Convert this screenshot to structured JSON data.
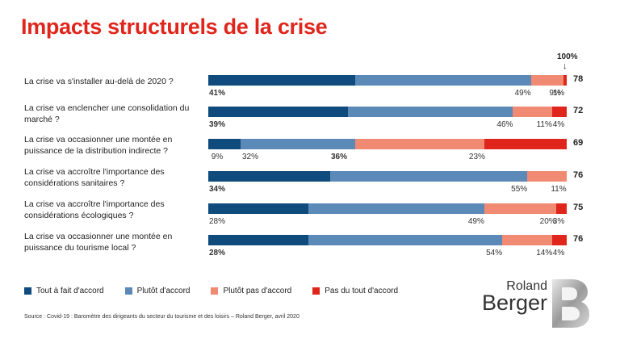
{
  "title": "Impacts structurels de la crise",
  "marker": {
    "label": "100%",
    "arrow": "↓"
  },
  "colors": {
    "tout_a_fait": "#0f4b7c",
    "plutot": "#5b8ab8",
    "plutot_pas": "#f08a72",
    "pas_du_tout": "#e0261c"
  },
  "chart_data": {
    "type": "bar",
    "orientation": "horizontal-stacked",
    "series_names": [
      "Tout à fait d'accord",
      "Plutôt d'accord",
      "Plutôt pas d'accord",
      "Pas du tout d'accord"
    ],
    "rows": [
      {
        "question": "La crise va s'installer au-delà de 2020 ?",
        "values": [
          41,
          49,
          9,
          1
        ],
        "labels": [
          "41%",
          "49%",
          "9%",
          "1%"
        ],
        "bold": [
          0
        ],
        "total": "78"
      },
      {
        "question": "La crise va enclencher une consolidation du marché ?",
        "values": [
          39,
          46,
          11,
          4
        ],
        "labels": [
          "39%",
          "46%",
          "11%",
          "4%"
        ],
        "bold": [
          0
        ],
        "total": "72"
      },
      {
        "question": "La crise va occasionner une montée en puissance de la distribution indirecte ?",
        "values": [
          9,
          32,
          36,
          23
        ],
        "labels": [
          "9%",
          "32%",
          "36%",
          "23%"
        ],
        "bold": [
          2
        ],
        "total": "69"
      },
      {
        "question": "La crise va accroître l'importance des considérations sanitaires ?",
        "values": [
          34,
          55,
          11,
          0
        ],
        "labels": [
          "34%",
          "55%",
          "11%",
          ""
        ],
        "bold": [
          0
        ],
        "total": "76"
      },
      {
        "question": "La crise va accroître l'importance des considérations écologiques ?",
        "values": [
          28,
          49,
          20,
          3
        ],
        "labels": [
          "28%",
          "49%",
          "20%",
          "3%"
        ],
        "bold": [],
        "total": "75"
      },
      {
        "question": "La crise va occasionner une montée en puissance du tourisme local ?",
        "values": [
          28,
          54,
          14,
          4
        ],
        "labels": [
          "28%",
          "54%",
          "14%",
          "4%"
        ],
        "bold": [
          0
        ],
        "total": "76"
      }
    ]
  },
  "legend": [
    {
      "label": "Tout à fait d'accord",
      "color": "#0f4b7c"
    },
    {
      "label": "Plutôt d'accord",
      "color": "#5b8ab8"
    },
    {
      "label": "Plutôt pas d'accord",
      "color": "#f08a72"
    },
    {
      "label": "Pas du tout d'accord",
      "color": "#e0261c"
    }
  ],
  "source": "Source : Covid-19 : Baromètre des dirigeants du secteur du tourisme et des loisirs – Roland Berger, avril 2020",
  "logo": {
    "line1": "Roland",
    "line2": "Berger"
  }
}
